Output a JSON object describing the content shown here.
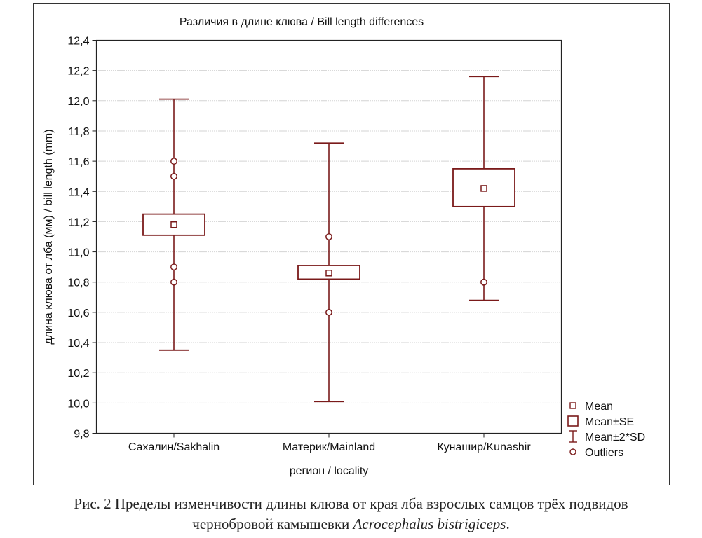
{
  "caption": {
    "line1": "Рис. 2 Пределы изменчивости длины клюва от края лба взрослых самцов трёх подвидов",
    "line2_prefix": "чернобровой камышевки ",
    "line2_species": "Acrocephalus bistrigiceps",
    "line2_suffix": "."
  },
  "chart_data": {
    "type": "box",
    "title": "Различия в длине клюва / Bill length differences",
    "xlabel": "регион / locality",
    "ylabel": "длина клюва от лба (мм) / bill length (mm)",
    "ylim": [
      9.8,
      12.4
    ],
    "yticks": [
      9.8,
      10.0,
      10.2,
      10.4,
      10.6,
      10.8,
      11.0,
      11.2,
      11.4,
      11.6,
      11.8,
      12.0,
      12.2,
      12.4
    ],
    "ytick_labels": [
      "9,8",
      "10,0",
      "10,2",
      "10,4",
      "10,6",
      "10,8",
      "11,0",
      "11,2",
      "11,4",
      "11,6",
      "11,8",
      "12,0",
      "12,2",
      "12,4"
    ],
    "grid": true,
    "legend_position": "right-bottom",
    "legend": [
      "Mean",
      "Mean±SE",
      "Mean±2*SD",
      "Outliers"
    ],
    "color": "#7a1a1a",
    "categories": [
      "Сахалин/Sakhalin",
      "Материк/Mainland",
      "Кунашир/Kunashir"
    ],
    "groups": [
      {
        "mean": 11.18,
        "se_low": 11.11,
        "se_high": 11.25,
        "sd2_low": 10.35,
        "sd2_high": 12.01,
        "outliers": [
          11.6,
          11.5,
          10.9,
          10.8
        ]
      },
      {
        "mean": 10.86,
        "se_low": 10.82,
        "se_high": 10.91,
        "sd2_low": 10.01,
        "sd2_high": 11.72,
        "outliers": [
          11.1,
          10.6
        ]
      },
      {
        "mean": 11.42,
        "se_low": 11.3,
        "se_high": 11.55,
        "sd2_low": 10.68,
        "sd2_high": 12.16,
        "outliers": [
          10.8
        ]
      }
    ]
  }
}
